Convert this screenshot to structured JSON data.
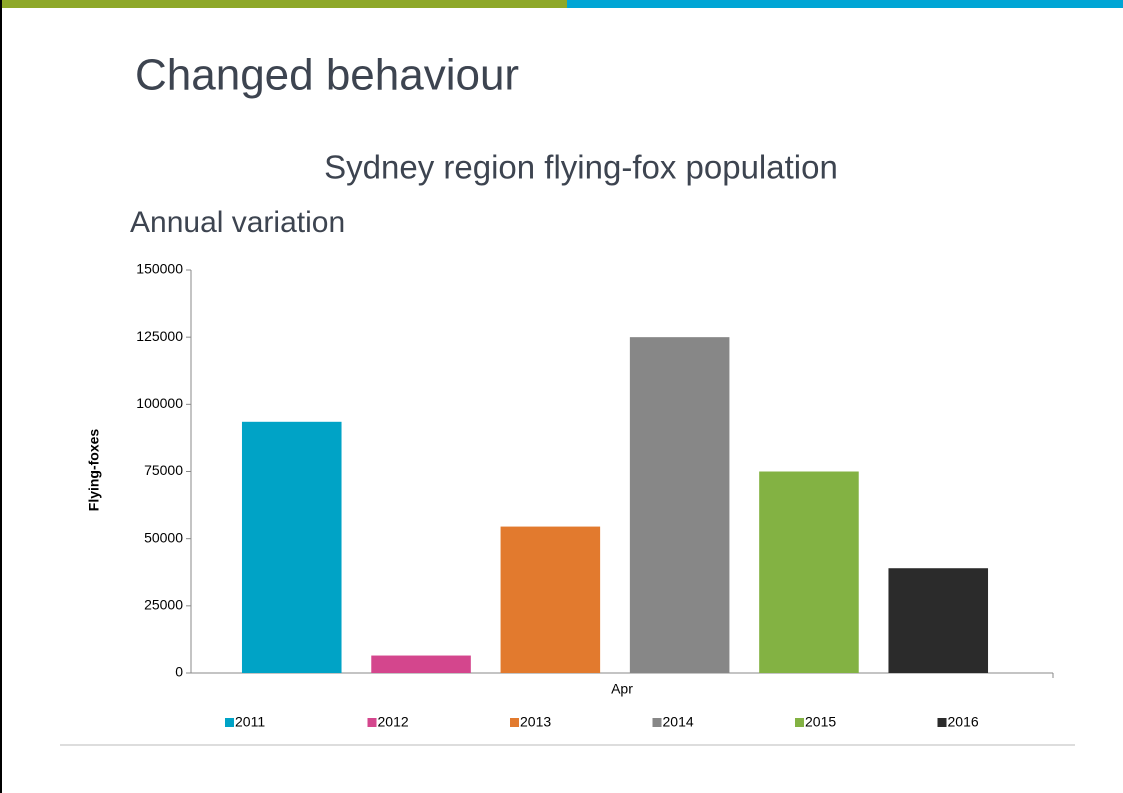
{
  "slide": {
    "title": "Changed behaviour"
  },
  "chart_data": {
    "type": "bar",
    "title": "Sydney region flying-fox population",
    "subtitle": "Annual variation",
    "y_label": "Flying-foxes",
    "categories": [
      "Apr"
    ],
    "series": [
      {
        "name": "2011",
        "color": "#00a3c6",
        "values": [
          93500
        ]
      },
      {
        "name": "2012",
        "color": "#d4468d",
        "values": [
          6500
        ]
      },
      {
        "name": "2013",
        "color": "#e27a2e",
        "values": [
          54500
        ]
      },
      {
        "name": "2014",
        "color": "#878787",
        "values": [
          125000
        ]
      },
      {
        "name": "2015",
        "color": "#83b243",
        "values": [
          75000
        ]
      },
      {
        "name": "2016",
        "color": "#2b2b2b",
        "values": [
          39000
        ]
      }
    ],
    "ylim": [
      0,
      150000
    ],
    "yticks": [
      0,
      25000,
      50000,
      75000,
      100000,
      125000,
      150000
    ],
    "grid": false,
    "legend": "bottom"
  }
}
